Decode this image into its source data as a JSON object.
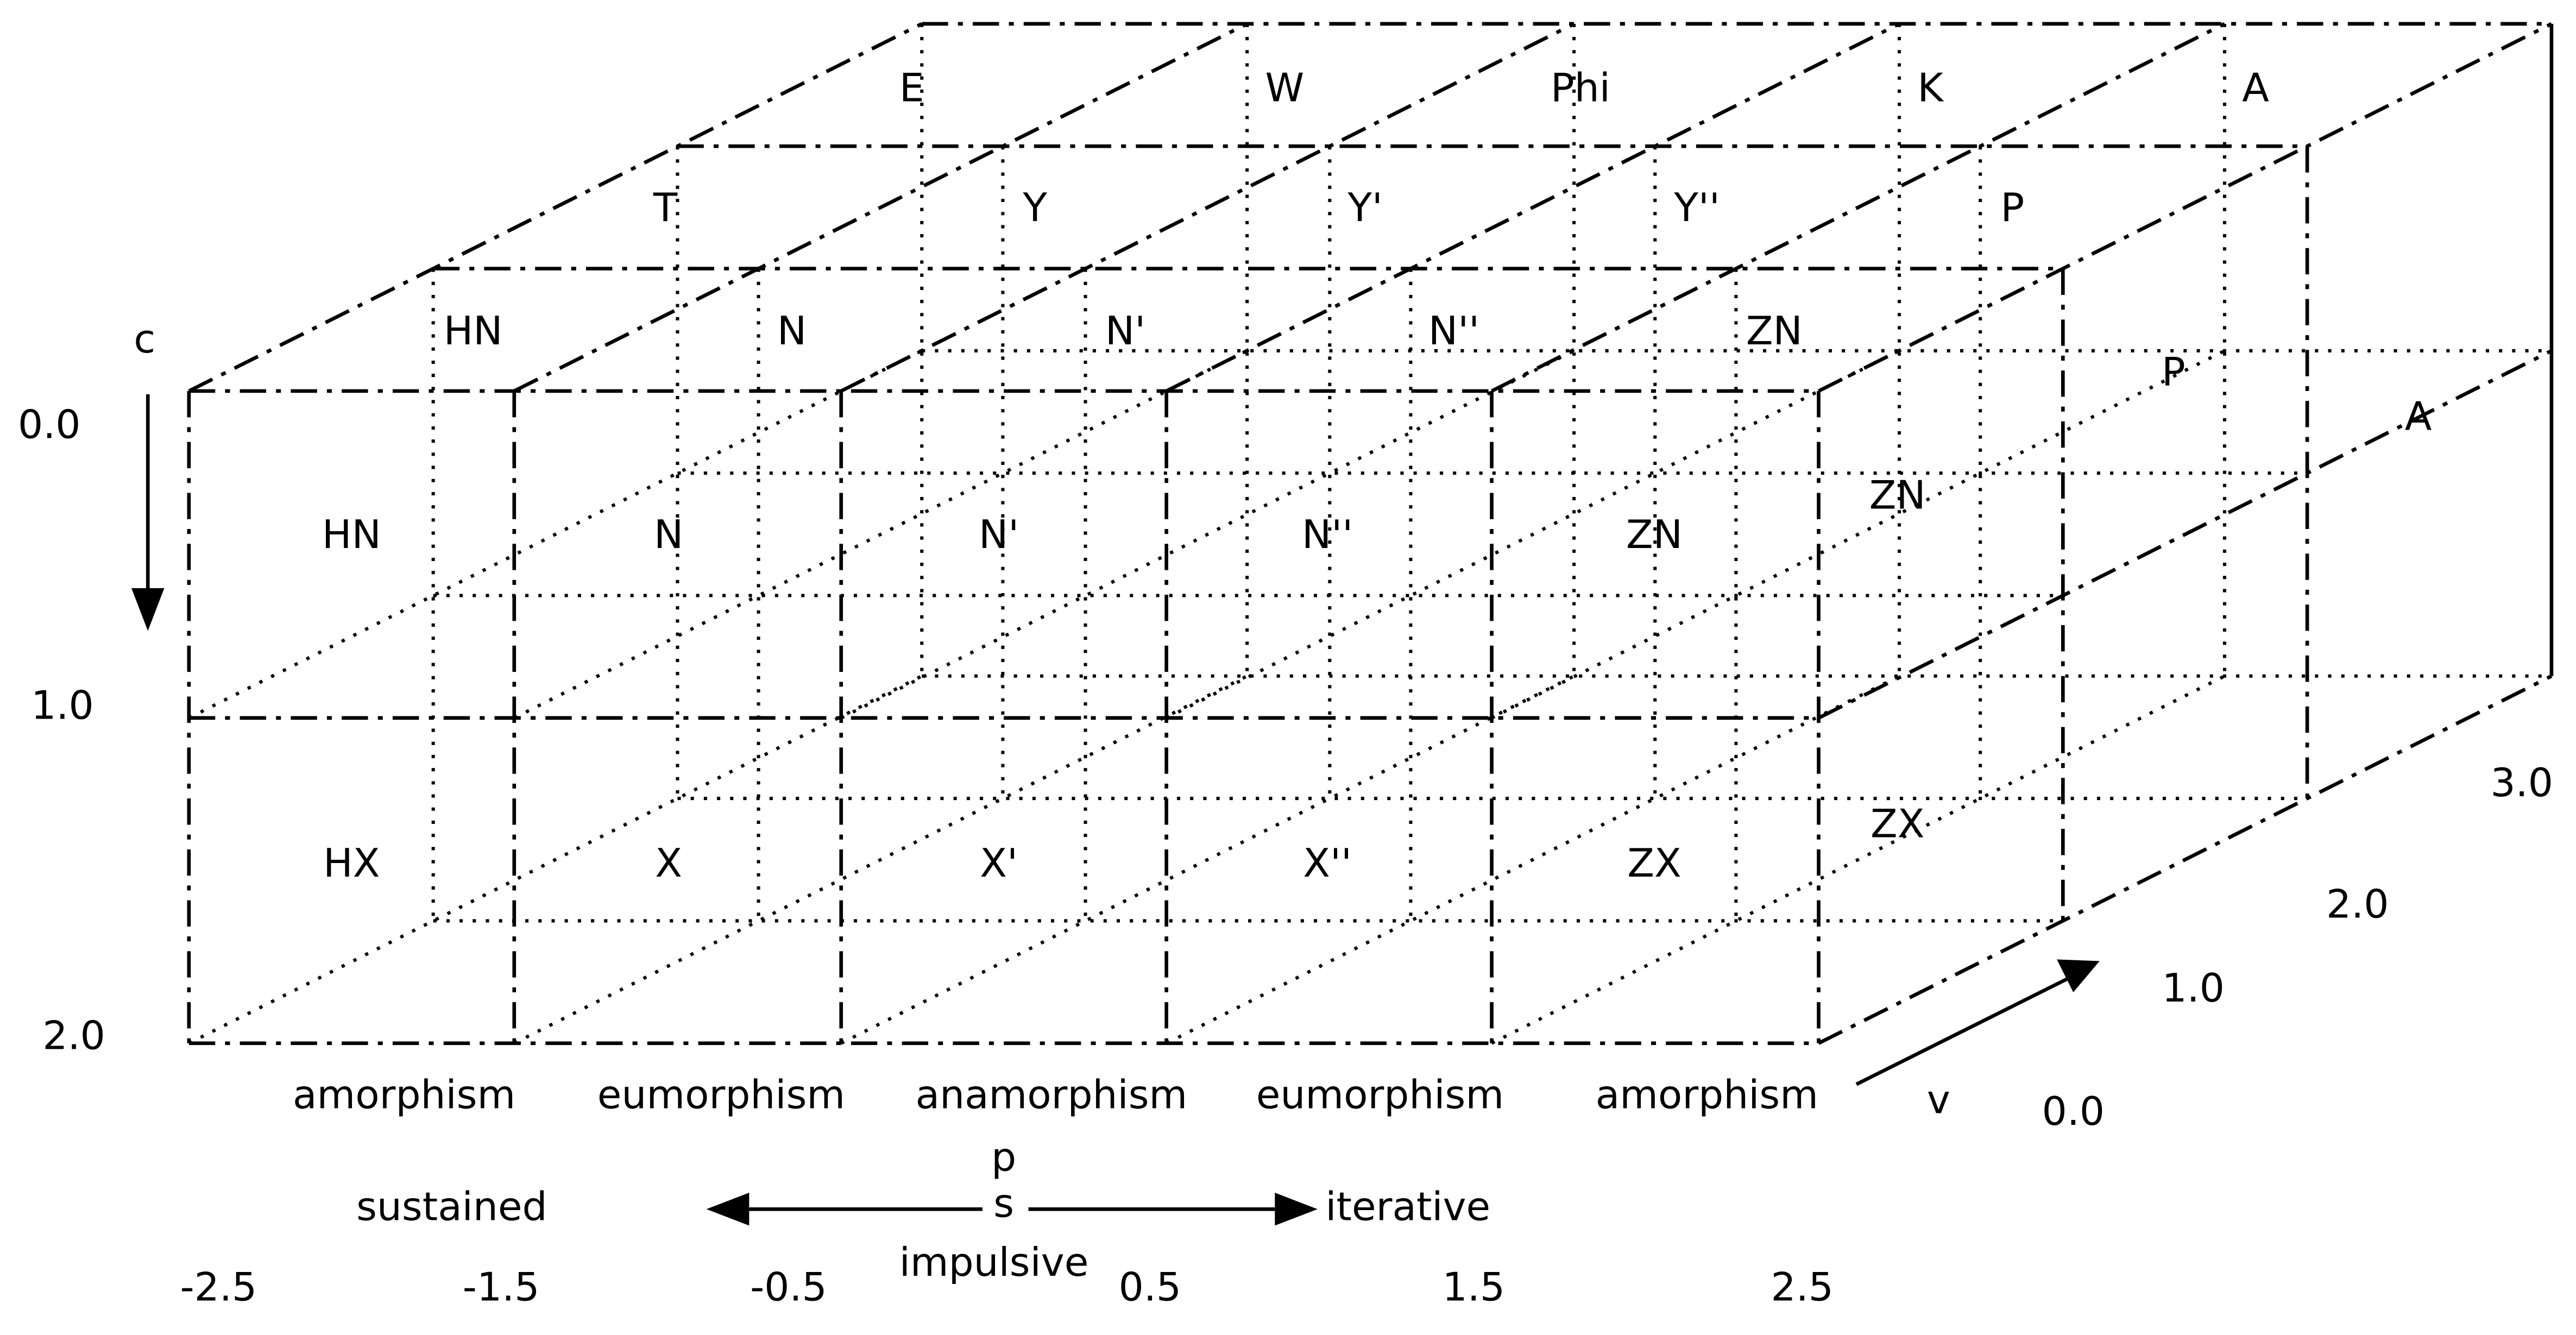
{
  "c_axis": {
    "label": "c",
    "ticks": [
      "0.0",
      "1.0",
      "2.0"
    ]
  },
  "v_axis": {
    "label": "v",
    "ticks": [
      "0.0",
      "1.0",
      "2.0",
      "3.0"
    ]
  },
  "p_axis": {
    "label": "p",
    "sub_label": "s",
    "left": "sustained",
    "center": "impulsive",
    "right": "iterative",
    "ticks": [
      "-2.5",
      "-1.5",
      "-0.5",
      "0.5",
      "1.5",
      "2.5"
    ]
  },
  "columns": [
    "amorphism",
    "eumorphism",
    "anamorphism",
    "eumorphism",
    "amorphism"
  ],
  "front": {
    "top": [
      "HN",
      "N",
      "N'",
      "N''",
      "ZN"
    ],
    "bottom": [
      "HX",
      "X",
      "X'",
      "X''",
      "ZX"
    ]
  },
  "layers": [
    [
      "HN",
      "N",
      "N'",
      "N''",
      "ZN"
    ],
    [
      "T",
      "Y",
      "Y'",
      "Y''",
      "P"
    ],
    [
      "E",
      "W",
      "Phi",
      "K",
      "A"
    ]
  ],
  "side": [
    "ZN",
    "ZX",
    "P",
    "A"
  ]
}
